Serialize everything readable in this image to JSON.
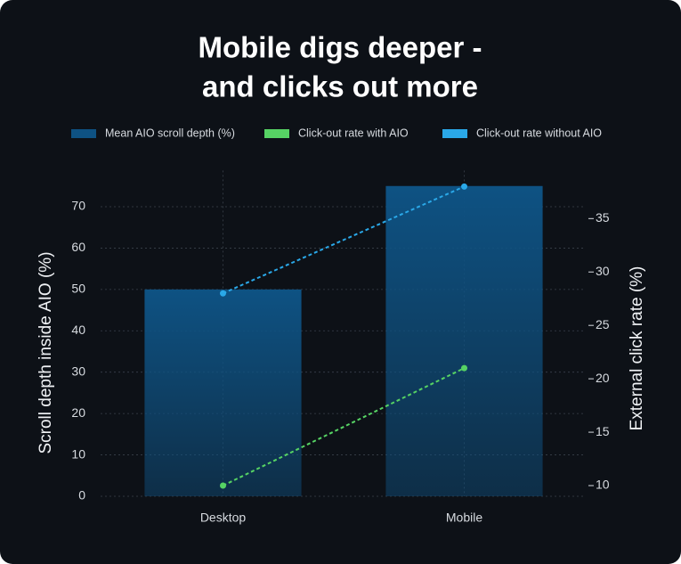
{
  "chart_data": {
    "type": "bar",
    "title": [
      "Mobile digs deeper -",
      "and clicks out more"
    ],
    "categories": [
      "Desktop",
      "Mobile"
    ],
    "series": [
      {
        "name": "Mean AIO scroll depth (%)",
        "type": "bar",
        "color": "#0e5283",
        "values": [
          50,
          75
        ]
      },
      {
        "name": "Click-out rate with AIO",
        "type": "line",
        "axis": "y2",
        "color": "#56d364",
        "values": [
          10,
          21
        ]
      },
      {
        "name": "Click-out rate without AIO",
        "type": "line",
        "axis": "y2",
        "color": "#2aa8e8",
        "values": [
          28,
          38
        ]
      }
    ],
    "ylabel": "Scroll depth inside AIO (%)",
    "y2label": "External click rate (%)",
    "ylim": [
      0,
      78.75
    ],
    "yticks": [
      0,
      10,
      20,
      30,
      40,
      50,
      60,
      70
    ],
    "y2lim": [
      9,
      39.5
    ],
    "y2ticks": [
      10,
      15,
      20,
      25,
      30,
      35
    ],
    "grid": true
  }
}
